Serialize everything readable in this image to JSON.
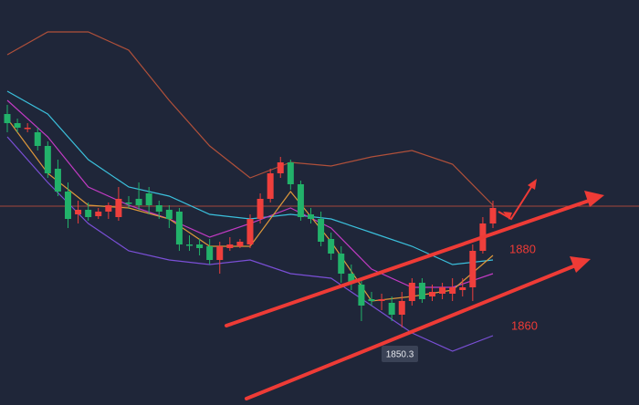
{
  "chart_data": {
    "type": "candlestick",
    "ylim": [
      1829,
      1940
    ],
    "up_color": "#ef3f3c",
    "down_color": "#22b26a",
    "price_line": 1883.5,
    "price_line_color": "#a4453a",
    "open": [
      1908.75,
      1906.25,
      1905,
      1903.75,
      1900,
      1893.75,
      1887.5,
      1881.25,
      1882.5,
      1880.75,
      1882,
      1880.5,
      1884.5,
      1885.5,
      1887,
      1883.75,
      1882.5,
      1882,
      1873,
      1873,
      1872.5,
      1868.75,
      1872,
      1872.5,
      1873,
      1880,
      1885.5,
      1892.5,
      1895.5,
      1889.5,
      1881.25,
      1880,
      1874.5,
      1870.5,
      1865,
      1862,
      1858,
      1857.5,
      1857,
      1853.75,
      1857.5,
      1862.5,
      1858.75,
      1859.5,
      1859.5,
      1860.5,
      1861.25,
      1871.25,
      1878.75
    ],
    "high": [
      1911.25,
      1907.5,
      1906.25,
      1905,
      1901.25,
      1896.25,
      1890,
      1885,
      1884.5,
      1883,
      1884.5,
      1888.75,
      1886.25,
      1890,
      1888.75,
      1885,
      1883.75,
      1883,
      1875.5,
      1874.5,
      1874.5,
      1873.75,
      1875,
      1874.5,
      1881.25,
      1887,
      1893.75,
      1897,
      1896.25,
      1890.5,
      1883,
      1882,
      1876.25,
      1872.5,
      1867.5,
      1863.75,
      1860,
      1859.5,
      1858.75,
      1860,
      1863.75,
      1863.75,
      1862,
      1862.5,
      1863.75,
      1863.75,
      1873,
      1880.5,
      1885
    ],
    "low": [
      1903.75,
      1903.75,
      1903.75,
      1898.75,
      1891.25,
      1886.25,
      1877.5,
      1878.75,
      1879.5,
      1880,
      1880,
      1879.5,
      1883,
      1882.5,
      1881.25,
      1880,
      1877.5,
      1871.25,
      1871.25,
      1870,
      1867.5,
      1865,
      1871.25,
      1872,
      1872,
      1878.75,
      1884.5,
      1891.25,
      1888,
      1879.5,
      1878.75,
      1872.5,
      1868.75,
      1862.5,
      1860.5,
      1852,
      1856.25,
      1855,
      1852,
      1850.3,
      1856.25,
      1857,
      1857.5,
      1858,
      1857.5,
      1858.75,
      1857.5,
      1870.5,
      1877.5
    ],
    "close": [
      1906.25,
      1905,
      1905,
      1900,
      1892.5,
      1887.5,
      1880,
      1882.5,
      1880.5,
      1882,
      1883.75,
      1885.5,
      1884.25,
      1883.75,
      1883.75,
      1882,
      1880,
      1873,
      1872.75,
      1872,
      1868.75,
      1872.5,
      1873,
      1873.75,
      1880,
      1885.5,
      1892.5,
      1895.5,
      1889.5,
      1880.5,
      1880,
      1873.75,
      1870.5,
      1865,
      1862.5,
      1856.25,
      1857.5,
      1858,
      1853.75,
      1857.5,
      1862.5,
      1858,
      1860,
      1861.25,
      1861.25,
      1861.25,
      1871.25,
      1878.75,
      1883
    ],
    "overlay_x": [
      0,
      4,
      8,
      12,
      16,
      20,
      24,
      28,
      32,
      36,
      40,
      44,
      48
    ],
    "overlays": [
      {
        "color": "#b0503a",
        "values": [
          1925,
          1931.25,
          1931.25,
          1926.25,
          1912.5,
          1900,
          1891.25,
          1895.5,
          1894.5,
          1897,
          1898.75,
          1895,
          1883.75
        ]
      },
      {
        "color": "#7a4fd6",
        "values": [
          1902.5,
          1890,
          1878.75,
          1871.25,
          1868.75,
          1867.5,
          1868.75,
          1865,
          1863.75,
          1856.25,
          1848.75,
          1843.75,
          1848
        ]
      },
      {
        "color": "#3bc0dc",
        "values": [
          1915,
          1908.75,
          1896.25,
          1888.75,
          1886.25,
          1881.25,
          1880,
          1881.25,
          1880,
          1876.25,
          1872.5,
          1867.5,
          1868.75
        ]
      },
      {
        "color": "#c23bc4",
        "values": [
          1912.5,
          1902.5,
          1888.75,
          1883.75,
          1880,
          1875,
          1878.75,
          1883,
          1877.5,
          1866.25,
          1861.25,
          1861.25,
          1865
        ]
      },
      {
        "color": "#de983a",
        "values": [
          1907.5,
          1892.5,
          1883.75,
          1883,
          1880,
          1872.5,
          1872.5,
          1887.5,
          1873.75,
          1857.5,
          1858.75,
          1860.5,
          1870
        ]
      }
    ],
    "annotations": [
      "1880",
      "1860",
      "1850.3"
    ]
  }
}
